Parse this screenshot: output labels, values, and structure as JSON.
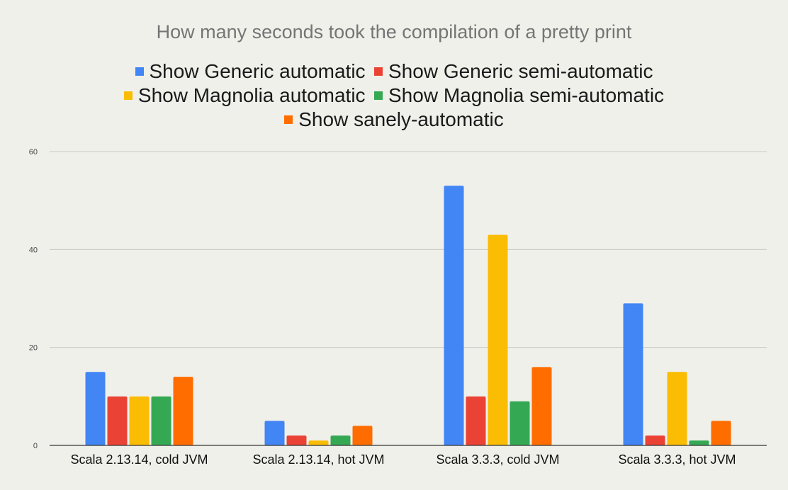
{
  "chart_data": {
    "type": "bar",
    "title": "How many seconds took the compilation of a pretty print",
    "xlabel": "",
    "ylabel": "",
    "categories": [
      "Scala 2.13.14, cold JVM",
      "Scala 2.13.14, hot JVM",
      "Scala 3.3.3, cold JVM",
      "Scala 3.3.3, hot JVM"
    ],
    "series": [
      {
        "name": "Show Generic automatic",
        "color": "#4285f4",
        "values": [
          15,
          5,
          53,
          29
        ]
      },
      {
        "name": "Show Generic semi-automatic",
        "color": "#ea4335",
        "values": [
          10,
          2,
          10,
          2
        ]
      },
      {
        "name": "Show Magnolia automatic",
        "color": "#fbbc04",
        "values": [
          10,
          1,
          43,
          15
        ]
      },
      {
        "name": "Show Magnolia semi-automatic",
        "color": "#34a853",
        "values": [
          10,
          2,
          9,
          1
        ]
      },
      {
        "name": "Show sanely-automatic",
        "color": "#ff6d01",
        "values": [
          14,
          4,
          16,
          5
        ]
      }
    ],
    "ylim": [
      0,
      60
    ],
    "yticks": [
      0,
      20,
      40,
      60
    ],
    "grid": true,
    "legend_position": "top"
  }
}
